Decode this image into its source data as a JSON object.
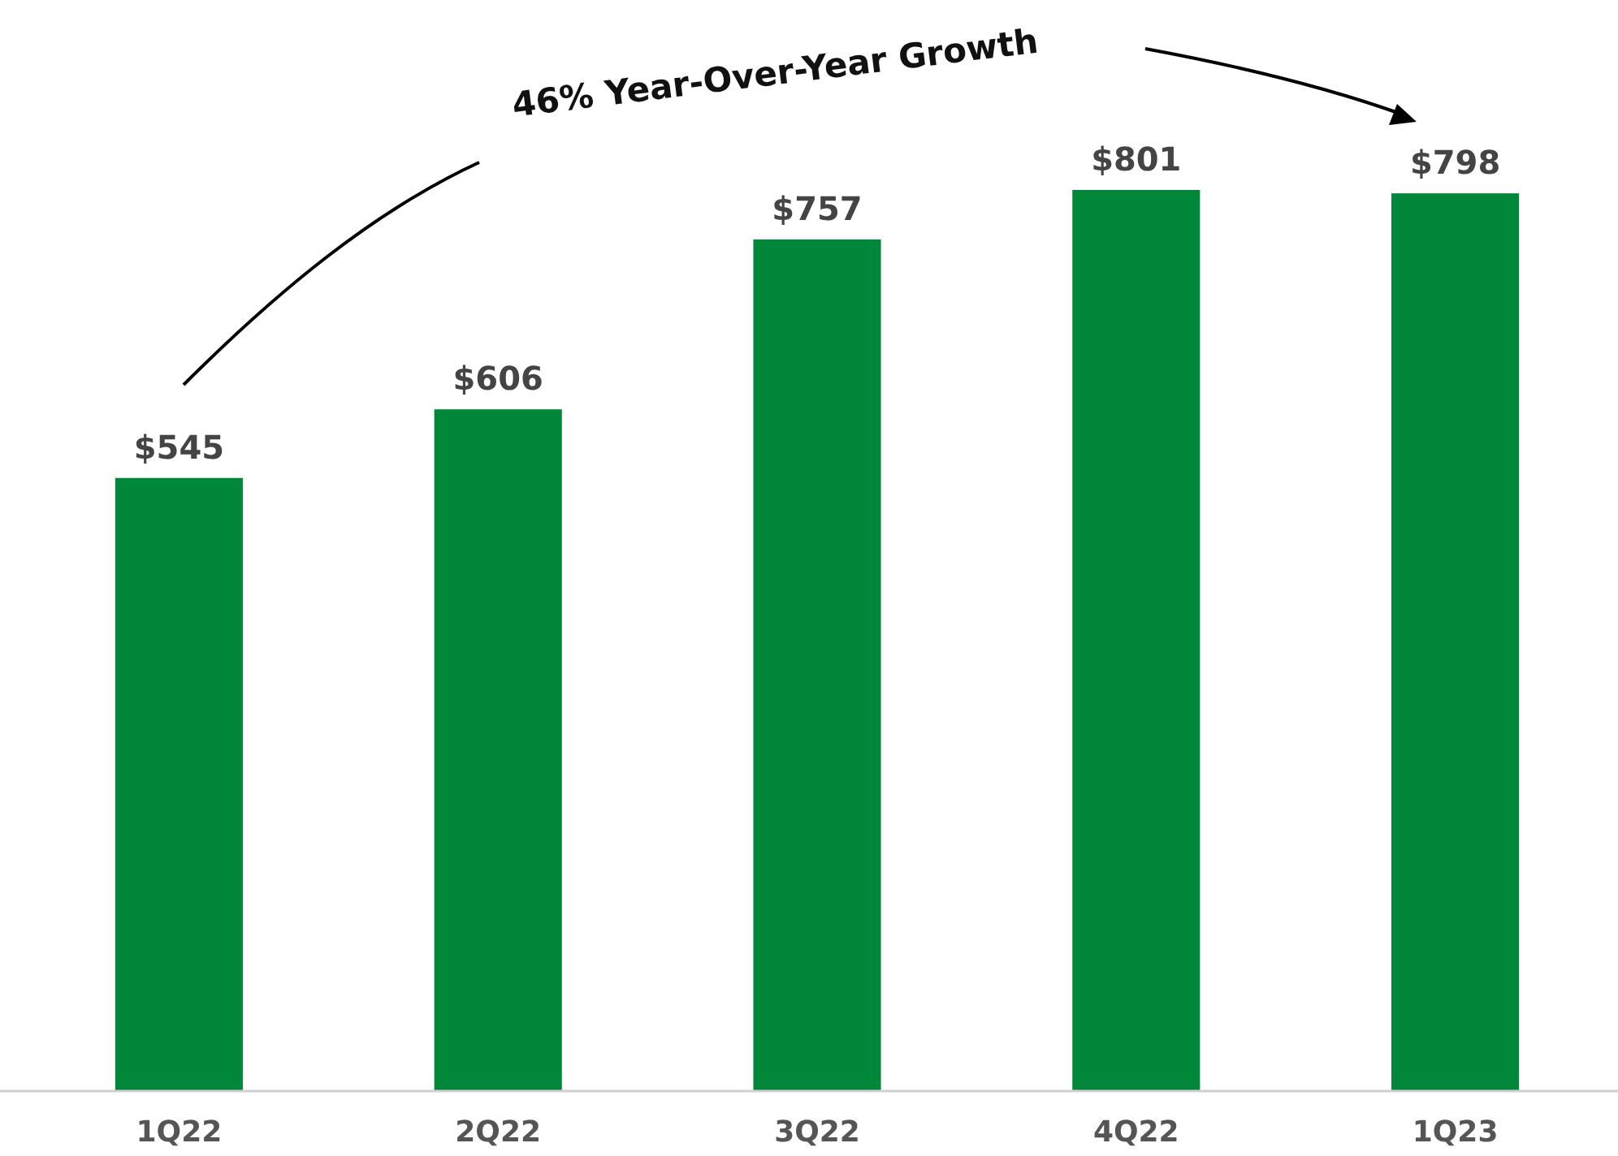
{
  "chart_data": {
    "type": "bar",
    "categories": [
      "1Q22",
      "2Q22",
      "3Q22",
      "4Q22",
      "1Q23"
    ],
    "values": [
      545,
      606,
      757,
      801,
      798
    ],
    "value_labels": [
      "$545",
      "$606",
      "$757",
      "$801",
      "$798"
    ],
    "color": "#00873a",
    "annotations": [
      "46% Year-Over-Year Growth"
    ]
  }
}
